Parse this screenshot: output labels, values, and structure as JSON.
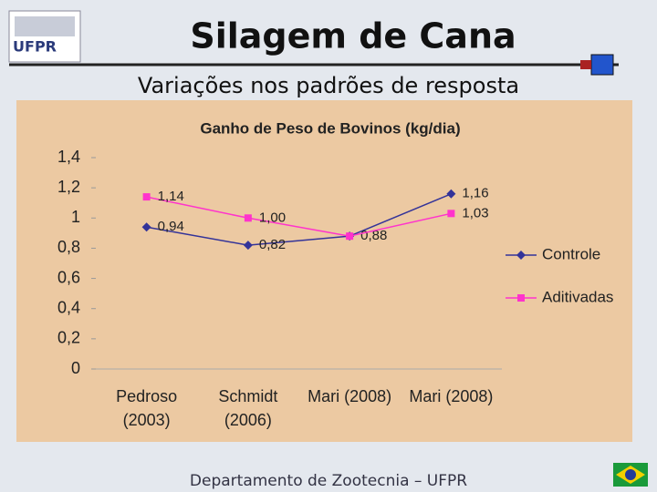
{
  "slide": {
    "title": "Silagem de Cana",
    "subtitle": "Variações nos padrões de resposta",
    "footer": "Departamento de Zootecnia – UFPR",
    "logo": "UFPR"
  },
  "chart_data": {
    "type": "line",
    "title": "Ganho de Peso de Bovinos (kg/dia)",
    "categories": [
      "Pedroso (2003)",
      "Schmidt (2006)",
      "Mari (2008)",
      "Mari (2008)"
    ],
    "series": [
      {
        "name": "Controle",
        "color": "#333399",
        "marker": "diamond",
        "values": [
          0.94,
          0.82,
          0.88,
          1.16
        ],
        "value_labels": [
          "0,94",
          "0,82",
          "0,88",
          "1,16"
        ]
      },
      {
        "name": "Aditivadas",
        "color": "#ff33cc",
        "marker": "square",
        "values": [
          1.14,
          1.0,
          0.88,
          1.03
        ],
        "value_labels": [
          "1,14",
          "1,00",
          null,
          "1,03"
        ]
      }
    ],
    "ylim": [
      0,
      1.4
    ],
    "yticks": [
      0,
      {
        "value": 0.2,
        "label": "0,2"
      },
      {
        "value": 0.4,
        "label": "0,4"
      },
      {
        "value": 0.6,
        "label": "0,6"
      },
      {
        "value": 0.8,
        "label": "0,8"
      },
      1,
      {
        "value": 1.2,
        "label": "1,2"
      },
      {
        "value": 1.4,
        "label": "1,4"
      }
    ],
    "legend": "right"
  }
}
